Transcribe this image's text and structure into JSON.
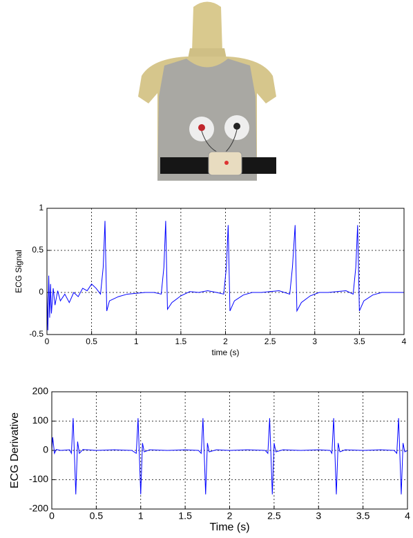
{
  "chart_data": [
    {
      "type": "line",
      "x_label": "time (s)",
      "y_label": "ECG Signal",
      "color": "#0000ff",
      "grid": true,
      "xlim": [
        0,
        4
      ],
      "ylim": [
        -0.5,
        1
      ],
      "xticks": [
        0,
        0.5,
        1,
        1.5,
        2,
        2.5,
        3,
        3.5,
        4
      ],
      "yticks": [
        -0.5,
        0,
        0.5,
        1
      ],
      "x": [
        0,
        0.01,
        0.02,
        0.03,
        0.04,
        0.05,
        0.07,
        0.09,
        0.12,
        0.15,
        0.2,
        0.25,
        0.3,
        0.35,
        0.4,
        0.45,
        0.5,
        0.55,
        0.6,
        0.63,
        0.65,
        0.67,
        0.7,
        0.8,
        0.9,
        1.0,
        1.1,
        1.2,
        1.28,
        1.31,
        1.33,
        1.35,
        1.4,
        1.5,
        1.6,
        1.7,
        1.8,
        1.9,
        1.98,
        2.01,
        2.03,
        2.05,
        2.1,
        2.2,
        2.3,
        2.4,
        2.5,
        2.6,
        2.72,
        2.75,
        2.78,
        2.8,
        2.85,
        2.95,
        3.05,
        3.15,
        3.25,
        3.35,
        3.43,
        3.46,
        3.48,
        3.5,
        3.55,
        3.65,
        3.75,
        3.85,
        3.95,
        4.0
      ],
      "values": [
        0,
        -0.45,
        0.2,
        -0.3,
        0.1,
        -0.25,
        0.05,
        -0.15,
        0.02,
        -0.1,
        -0.02,
        -0.12,
        0.0,
        -0.05,
        0.05,
        0.02,
        0.1,
        0.05,
        -0.02,
        0.3,
        0.85,
        -0.22,
        -0.1,
        -0.05,
        -0.02,
        -0.01,
        0.0,
        0.0,
        -0.02,
        0.3,
        0.85,
        -0.2,
        -0.12,
        -0.04,
        0.01,
        0.0,
        0.02,
        0.0,
        -0.02,
        0.3,
        0.8,
        -0.22,
        -0.1,
        -0.03,
        0.0,
        0.0,
        0.01,
        0.02,
        -0.02,
        0.3,
        0.8,
        -0.22,
        -0.12,
        -0.04,
        0.0,
        0.0,
        0.01,
        0.02,
        -0.02,
        0.3,
        0.8,
        -0.22,
        -0.1,
        -0.03,
        0.0,
        0.0,
        0.0,
        0.0
      ]
    },
    {
      "type": "line",
      "x_label": "Time (s)",
      "y_label": "ECG Derivative",
      "color": "#0000ff",
      "grid": true,
      "xlim": [
        0,
        4
      ],
      "ylim": [
        -200,
        200
      ],
      "xticks": [
        0,
        0.5,
        1,
        1.5,
        2,
        2.5,
        3,
        3.5,
        4
      ],
      "yticks": [
        -200,
        -100,
        0,
        100,
        200
      ],
      "x": [
        0,
        0.01,
        0.03,
        0.05,
        0.1,
        0.2,
        0.22,
        0.24,
        0.27,
        0.29,
        0.31,
        0.35,
        0.5,
        0.7,
        0.9,
        0.95,
        0.97,
        1.0,
        1.02,
        1.04,
        1.1,
        1.3,
        1.5,
        1.65,
        1.68,
        1.7,
        1.73,
        1.75,
        1.77,
        1.85,
        2.0,
        2.2,
        2.4,
        2.43,
        2.45,
        2.48,
        2.5,
        2.52,
        2.6,
        2.8,
        3.0,
        3.13,
        3.15,
        3.17,
        3.2,
        3.22,
        3.24,
        3.3,
        3.5,
        3.7,
        3.85,
        3.88,
        3.9,
        3.93,
        3.95,
        3.97,
        4.0
      ],
      "values": [
        0,
        45,
        -10,
        3,
        0,
        2,
        -10,
        110,
        -150,
        30,
        -10,
        3,
        0,
        2,
        0,
        -10,
        110,
        -150,
        25,
        -5,
        2,
        0,
        2,
        0,
        -10,
        110,
        -150,
        25,
        -5,
        2,
        0,
        2,
        0,
        -10,
        110,
        -150,
        25,
        -5,
        2,
        0,
        2,
        0,
        -10,
        110,
        -150,
        25,
        -5,
        2,
        0,
        2,
        0,
        -10,
        110,
        -150,
        25,
        -5,
        0
      ]
    }
  ]
}
